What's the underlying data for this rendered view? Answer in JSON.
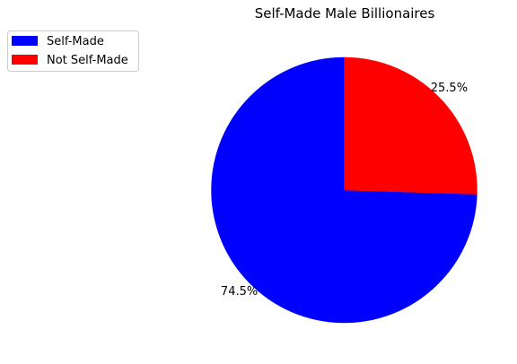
{
  "chart_data": {
    "type": "pie",
    "title": "Self-Made Male Billionaires",
    "labels": [
      "Self-Made",
      "Not Self-Made"
    ],
    "values": [
      74.5,
      25.5
    ],
    "colors": [
      "#0000ff",
      "#ff0000"
    ],
    "autopct_labels": [
      "74.5%",
      "25.5%"
    ],
    "start_angle_deg": 90,
    "direction": "counterclockwise",
    "legend_placement": "top-left"
  }
}
